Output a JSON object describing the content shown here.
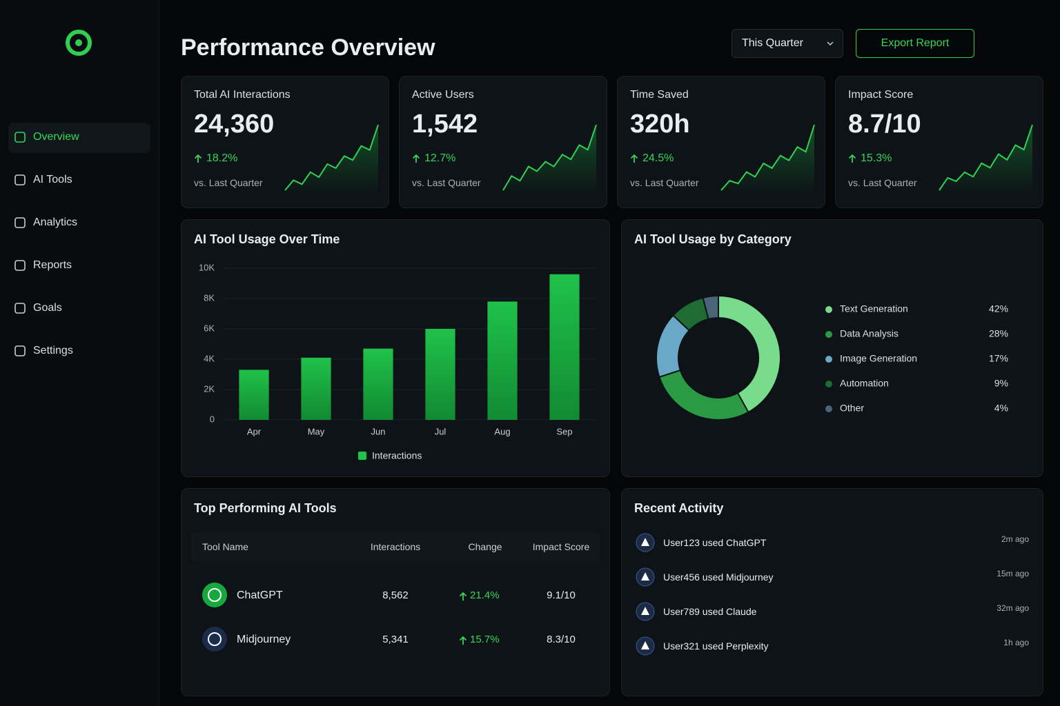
{
  "sidebar": {
    "nav": [
      "Overview",
      "AI Tools",
      "Analytics",
      "Reports",
      "Goals",
      "Settings"
    ]
  },
  "header": {
    "title": "Performance Overview",
    "period": "This Quarter",
    "export": "Export Report"
  },
  "kpis": [
    {
      "label": "Total AI Interactions",
      "value": "24,360",
      "change": "18.2%",
      "compare": "vs. Last Quarter",
      "trend": [
        2,
        3,
        2.6,
        3.8,
        3.3,
        4.6,
        4.2,
        5.4,
        5,
        6.4,
        6,
        8.5
      ]
    },
    {
      "label": "Active Users",
      "value": "1,542",
      "change": "12.7%",
      "compare": "vs. Last Quarter",
      "trend": [
        2,
        3.2,
        2.8,
        4,
        3.6,
        4.4,
        4,
        5,
        4.6,
        5.8,
        5.4,
        7.5
      ]
    },
    {
      "label": "Time Saved",
      "value": "320h",
      "change": "24.5%",
      "compare": "vs. Last Quarter",
      "trend": [
        2,
        3,
        2.7,
        3.9,
        3.4,
        4.8,
        4.3,
        5.6,
        5.1,
        6.5,
        6,
        8.8
      ]
    },
    {
      "label": "Impact Score",
      "value": "8.7/10",
      "change": "15.3%",
      "compare": "vs. Last Quarter",
      "trend": [
        2,
        3.1,
        2.8,
        3.6,
        3.2,
        4.4,
        4,
        5.2,
        4.7,
        6,
        5.6,
        7.8
      ]
    }
  ],
  "chart_data": [
    {
      "type": "bar",
      "title": "AI Tool Usage Over Time",
      "categories": [
        "Apr",
        "May",
        "Jun",
        "Jul",
        "Aug",
        "Sep"
      ],
      "series": [
        {
          "name": "Interactions",
          "color": "#1fc24a",
          "values": [
            3300,
            4100,
            4700,
            6000,
            7800,
            9600
          ]
        }
      ],
      "ylim": [
        0,
        10000
      ],
      "yticks": [
        0,
        {
          "value": 2000,
          "label": "2K"
        },
        {
          "value": 4000,
          "label": "4K"
        },
        {
          "value": 6000,
          "label": "6K"
        },
        {
          "value": 8000,
          "label": "8K"
        },
        {
          "value": 10000,
          "label": "10K"
        }
      ],
      "grid": true
    },
    {
      "type": "pie",
      "title": "AI Tool Usage by Category",
      "categories": [
        "Text Generation",
        "Data Analysis",
        "Image Generation",
        "Automation",
        "Other"
      ],
      "values": [
        42,
        28,
        17,
        9,
        4
      ],
      "value_labels": [
        "42%",
        "28%",
        "17%",
        "9%",
        "4%"
      ],
      "colors": [
        "#78dc8c",
        "#2a9a44",
        "#6aa8c8",
        "#1e6b34",
        "#4a6478"
      ]
    }
  ],
  "top_tools": {
    "title": "Top Performing AI Tools",
    "columns": [
      "Tool Name",
      "Interactions",
      "Change",
      "Impact Score"
    ],
    "rows": [
      [
        "ChatGPT",
        "8,562",
        "21.4%",
        "9.1/10"
      ],
      [
        "Midjourney",
        "5,341",
        "15.7%",
        "8.3/10"
      ]
    ]
  },
  "activity": {
    "title": "Recent Activity",
    "items": [
      {
        "text": "User123 used ChatGPT",
        "time": "2m ago"
      },
      {
        "text": "User456 used Midjourney",
        "time": "15m ago"
      },
      {
        "text": "User789 used Claude",
        "time": "32m ago"
      },
      {
        "text": "User321 used Perplexity",
        "time": "1h ago"
      }
    ]
  }
}
